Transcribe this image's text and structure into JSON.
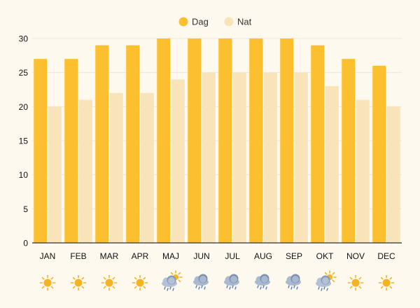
{
  "chart_data": {
    "type": "bar",
    "categories": [
      "JAN",
      "FEB",
      "MAR",
      "APR",
      "MAJ",
      "JUN",
      "JUL",
      "AUG",
      "SEP",
      "OKT",
      "NOV",
      "DEC"
    ],
    "series": [
      {
        "name": "Dag",
        "values": [
          27,
          27,
          29,
          29,
          30,
          30,
          30,
          30,
          30,
          29,
          27,
          26
        ],
        "color": "#fbbf2f"
      },
      {
        "name": "Nat",
        "values": [
          20,
          21,
          22,
          22,
          24,
          25,
          25,
          25,
          25,
          23,
          21,
          20
        ],
        "color": "#f8e4b8"
      }
    ],
    "ylim": [
      0,
      30
    ],
    "yticks": [
      0,
      5,
      10,
      15,
      20,
      25,
      30
    ],
    "grid": true,
    "legend": "top-center",
    "weather_icons": [
      "sun-icon",
      "sun-icon",
      "sun-icon",
      "sun-icon",
      "sun-rain-cloud-icon",
      "rain-cloud-icon",
      "rain-cloud-icon",
      "rain-cloud-icon",
      "rain-cloud-icon",
      "sun-rain-cloud-icon",
      "sun-icon",
      "sun-icon"
    ],
    "colors": {
      "background": "#fdf9ee",
      "grid": "#ece6d6",
      "axis": "#333333",
      "sun": "#f5b324",
      "cloud": "#8fa3bd",
      "rain": "#5b7fb0"
    }
  }
}
